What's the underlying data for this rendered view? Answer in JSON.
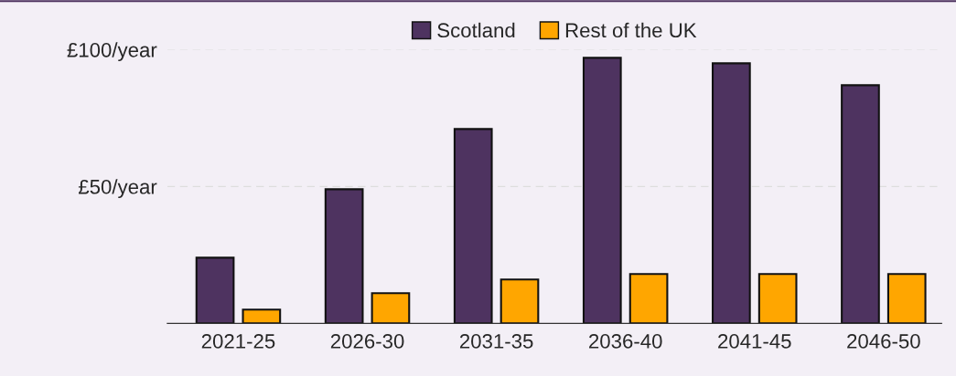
{
  "chart_data": {
    "type": "bar",
    "categories": [
      "2021-25",
      "2026-30",
      "2031-35",
      "2036-40",
      "2041-45",
      "2046-50"
    ],
    "series": [
      {
        "name": "Scotland",
        "color": "#4e3360",
        "values": [
          24,
          49,
          71,
          97,
          95,
          87
        ]
      },
      {
        "name": "Rest of the UK",
        "color": "#ffa600",
        "values": [
          5,
          11,
          16,
          18,
          18,
          18
        ]
      }
    ],
    "ylim": [
      0,
      100
    ],
    "yticks": [
      {
        "value": 50,
        "label": "£50/year"
      },
      {
        "value": 100,
        "label": "£100/year"
      }
    ],
    "grid": "y",
    "legend": "top"
  }
}
